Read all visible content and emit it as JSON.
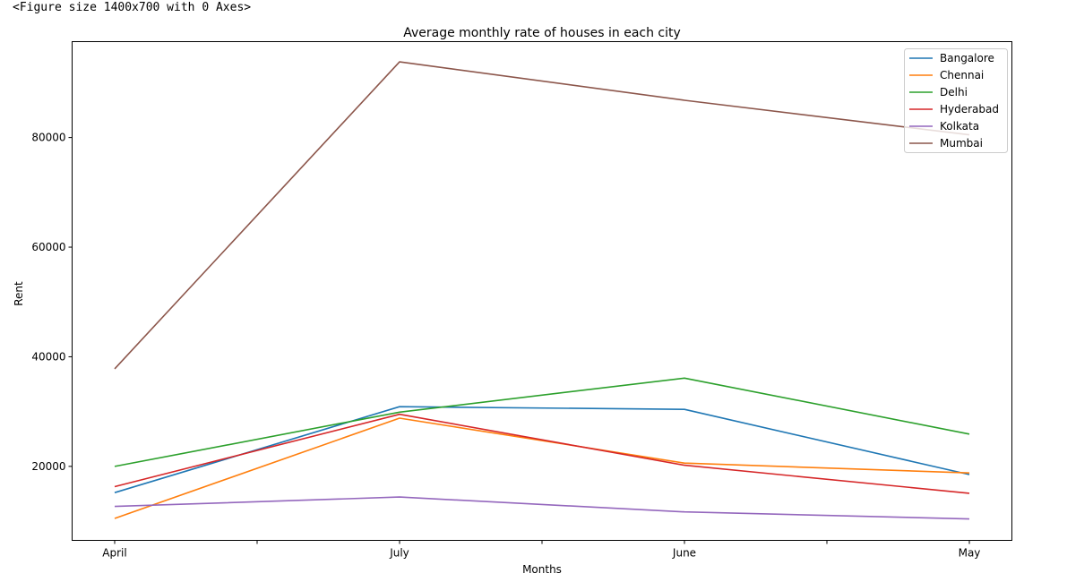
{
  "output_text": "<Figure size 1400x700 with 0 Axes>",
  "chart_data": {
    "type": "line",
    "title": "Average monthly rate of houses in each city",
    "xlabel": "Months",
    "ylabel": "Rent",
    "categories": [
      "April",
      "July",
      "June",
      "May"
    ],
    "ylim": [
      6500,
      97500
    ],
    "yticks": [
      20000,
      40000,
      60000,
      80000
    ],
    "ytick_labels": [
      "20000",
      "40000",
      "60000",
      "80000"
    ],
    "legend_position": "top-right",
    "grid": false,
    "series": [
      {
        "name": "Bangalore",
        "color": "#1f77b4",
        "values": [
          15200,
          30900,
          30400,
          18500
        ]
      },
      {
        "name": "Chennai",
        "color": "#ff7f0e",
        "values": [
          10500,
          28800,
          20600,
          18800
        ]
      },
      {
        "name": "Delhi",
        "color": "#2ca02c",
        "values": [
          20000,
          29900,
          36100,
          25900
        ]
      },
      {
        "name": "Hyderabad",
        "color": "#d62728",
        "values": [
          16300,
          29500,
          20200,
          15100
        ]
      },
      {
        "name": "Kolkata",
        "color": "#9467bd",
        "values": [
          12700,
          14400,
          11700,
          10400
        ]
      },
      {
        "name": "Mumbai",
        "color": "#8c564b",
        "values": [
          37800,
          93800,
          86800,
          80500
        ]
      }
    ]
  }
}
